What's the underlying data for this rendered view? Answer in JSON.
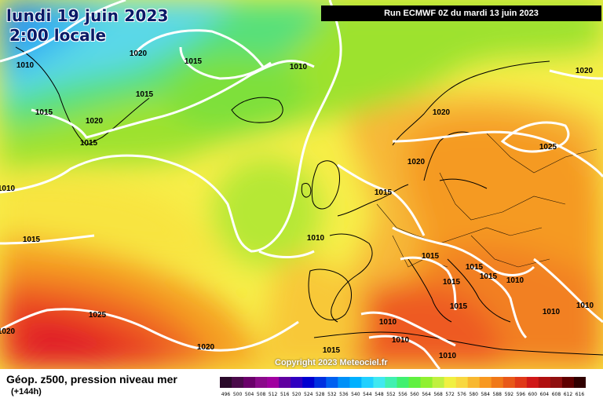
{
  "header": {
    "date_line": "lundi 19 juin 2023",
    "time_line": "2:00 locale",
    "run_info": "Run ECMWF 0Z du mardi 13 juin 2023"
  },
  "footer": {
    "parameter": "Géop. z500, pression niveau mer",
    "lead_time": "(+144h)",
    "copyright": "Copyright 2023 Meteociel.fr"
  },
  "colors": {
    "isobar": "#ffffff",
    "coast": "#000000",
    "green": "#7ee030",
    "yellow": "#f6f04a",
    "orange": "#f5a020",
    "red": "#e82a2a",
    "cyan": "#3fd0f0"
  },
  "isobar_labels": [
    "1010",
    "1020",
    "1015",
    "1010",
    "1015",
    "1020",
    "1015",
    "1015",
    "1020",
    "1025",
    "1020",
    "1020",
    "1015",
    "1015",
    "1010",
    "1010",
    "1015",
    "1015",
    "1015",
    "1010",
    "1015",
    "1010",
    "1010",
    "1010",
    "1025",
    "1020",
    "1020",
    "1010",
    "1015",
    "1010",
    "1020",
    "1015"
  ],
  "scale": {
    "labels": [
      "496",
      "500",
      "504",
      "508",
      "512",
      "516",
      "520",
      "524",
      "528",
      "532",
      "536",
      "540",
      "544",
      "548",
      "552",
      "556",
      "560",
      "564",
      "568",
      "572",
      "576",
      "580",
      "584",
      "588",
      "592",
      "596",
      "600",
      "604",
      "608",
      "612",
      "616"
    ],
    "colors": [
      "#2a0a2a",
      "#4a0a4a",
      "#6a006a",
      "#8a0a8a",
      "#a000a0",
      "#6000a0",
      "#3000c0",
      "#0000d0",
      "#0030e0",
      "#0060f0",
      "#0090f8",
      "#00b0ff",
      "#20d0ff",
      "#40e8f0",
      "#40f0b0",
      "#40f070",
      "#60f040",
      "#90f030",
      "#c0f040",
      "#f0f040",
      "#f8d840",
      "#f8b830",
      "#f89820",
      "#f07818",
      "#e85818",
      "#e03818",
      "#d01818",
      "#b01010",
      "#901010",
      "#600000",
      "#300000"
    ]
  }
}
